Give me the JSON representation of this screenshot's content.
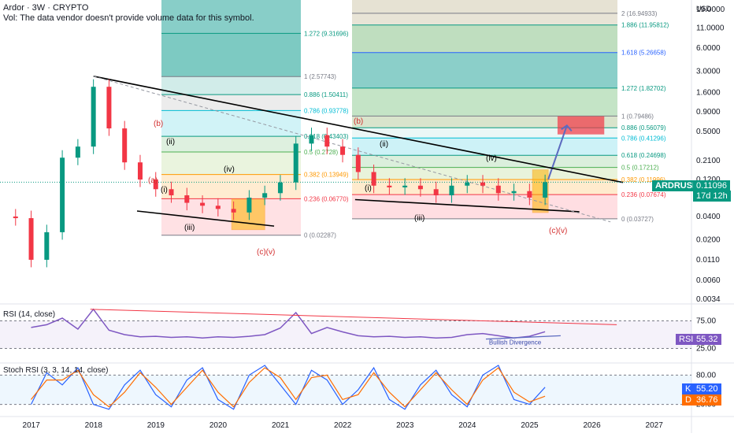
{
  "header": {
    "title": "Ardor · 3W · CRYPTO",
    "vol_note": "Vol: The data vendor doesn't provide volume data for this symbol."
  },
  "price_axis": {
    "currency": "USD",
    "ticks": [
      "19.0000",
      "11.0000",
      "6.0000",
      "3.0000",
      "1.6000",
      "0.9000",
      "0.5000",
      "0.2100",
      "0.1200",
      "0.0700",
      "0.0400",
      "0.0200",
      "0.0110",
      "0.0060",
      "0.0034"
    ]
  },
  "x_axis": {
    "labels": [
      "2017",
      "2018",
      "2019",
      "2020",
      "2021",
      "2022",
      "2023",
      "2024",
      "2025",
      "2026",
      "2027"
    ]
  },
  "symbol_badge": {
    "symbol": "ARDRUSD",
    "price": "0.11096",
    "countdown": "17d 12h",
    "color": "#089981"
  },
  "fib_left": [
    {
      "label": "1.272 (9.31696)",
      "color": "#089981"
    },
    {
      "label": "1 (2.57743)",
      "color": "#787b86"
    },
    {
      "label": "0.886 (1.50411)",
      "color": "#089981"
    },
    {
      "label": "0.786 (0.93778)",
      "color": "#00bcd4"
    },
    {
      "label": "0.618 (0.43403)",
      "color": "#089981"
    },
    {
      "label": "0.5 (0.2728)",
      "color": "#4caf50"
    },
    {
      "label": "0.382 (0.13949)",
      "color": "#ff9800"
    },
    {
      "label": "0.236 (0.06770)",
      "color": "#f23645"
    },
    {
      "label": "0 (0.02287)",
      "color": "#787b86"
    }
  ],
  "fib_right": [
    {
      "label": "2 (16.94933)",
      "color": "#787b86"
    },
    {
      "label": "1.886 (11.95812)",
      "color": "#089981"
    },
    {
      "label": "1.618 (5.26658)",
      "color": "#2962ff"
    },
    {
      "label": "1.272 (1.82702)",
      "color": "#089981"
    },
    {
      "label": "1 (0.79486)",
      "color": "#787b86"
    },
    {
      "label": "0.886 (0.56079)",
      "color": "#089981"
    },
    {
      "label": "0.786 (0.41296)",
      "color": "#00bcd4"
    },
    {
      "label": "0.618 (0.24698)",
      "color": "#089981"
    },
    {
      "label": "0.5 (0.17212)",
      "color": "#4caf50"
    },
    {
      "label": "0.382 (0.11996)",
      "color": "#ff9800"
    },
    {
      "label": "0.236 (0.07674)",
      "color": "#f23645"
    },
    {
      "label": "0 (0.03727)",
      "color": "#787b86"
    }
  ],
  "wave_labels": {
    "a": "(a)",
    "b": "(b)",
    "i": "(i)",
    "ii": "(ii)",
    "iii": "(iii)",
    "iv": "(iv)",
    "cv": "(c)(v)"
  },
  "rsi": {
    "title": "RSI (14, close)",
    "ticks": [
      "75.00",
      "25.00"
    ],
    "badge_name": "RSI",
    "badge_value": "55.32",
    "divergence_label": "Bullish Divergence"
  },
  "stoch": {
    "title": "Stoch RSI (3, 3, 14, 14, close)",
    "ticks": [
      "80.00",
      "20.00"
    ],
    "k_name": "K",
    "k_value": "55.20",
    "d_name": "D",
    "d_value": "36.76"
  },
  "chart_data": [
    {
      "type": "candlestick",
      "title": "Ardor · 3W · CRYPTO",
      "scale": "log",
      "ylim": [
        0.0034,
        19.0
      ],
      "x": [
        "2016-10",
        "2017-01",
        "2017-04",
        "2017-07",
        "2017-10",
        "2018-01",
        "2018-04",
        "2018-07",
        "2018-10",
        "2019-01",
        "2019-04",
        "2019-07",
        "2019-10",
        "2020-01",
        "2020-04",
        "2020-07",
        "2020-10",
        "2021-01",
        "2021-04",
        "2021-07",
        "2021-10",
        "2022-01",
        "2022-04",
        "2022-07",
        "2022-10",
        "2023-01",
        "2023-04",
        "2023-07",
        "2023-10",
        "2024-01",
        "2024-04",
        "2024-07",
        "2024-10",
        "2025-01",
        "2025-04"
      ],
      "close": [
        0.038,
        0.011,
        0.025,
        0.23,
        0.32,
        1.9,
        0.55,
        0.2,
        0.12,
        0.09,
        0.075,
        0.06,
        0.055,
        0.05,
        0.045,
        0.07,
        0.08,
        0.11,
        0.35,
        0.45,
        0.32,
        0.25,
        0.15,
        0.1,
        0.095,
        0.1,
        0.09,
        0.075,
        0.1,
        0.11,
        0.1,
        0.08,
        0.085,
        0.07,
        0.11096
      ]
    },
    {
      "type": "line",
      "title": "RSI (14, close)",
      "ylim": [
        0,
        100
      ],
      "x": [
        "2017-01",
        "2017-04",
        "2017-07",
        "2017-10",
        "2018-01",
        "2018-04",
        "2018-07",
        "2018-10",
        "2019-01",
        "2019-04",
        "2019-07",
        "2019-10",
        "2020-01",
        "2020-04",
        "2020-07",
        "2020-10",
        "2021-01",
        "2021-04",
        "2021-07",
        "2021-10",
        "2022-01",
        "2022-04",
        "2022-07",
        "2022-10",
        "2023-01",
        "2023-04",
        "2023-07",
        "2023-10",
        "2024-01",
        "2024-04",
        "2024-07",
        "2024-10",
        "2025-01",
        "2025-04"
      ],
      "values": [
        63,
        68,
        80,
        60,
        96,
        58,
        50,
        46,
        47,
        45,
        46,
        44,
        46,
        45,
        47,
        50,
        62,
        90,
        52,
        63,
        55,
        48,
        46,
        47,
        45,
        46,
        44,
        45,
        50,
        52,
        48,
        44,
        47,
        55.32
      ]
    },
    {
      "type": "line",
      "title": "Stoch RSI (3, 3, 14, 14, close)",
      "ylim": [
        0,
        100
      ],
      "series": [
        {
          "name": "K",
          "values": [
            20,
            85,
            60,
            95,
            20,
            10,
            60,
            90,
            40,
            15,
            70,
            95,
            30,
            10,
            80,
            100,
            60,
            20,
            90,
            70,
            20,
            50,
            95,
            30,
            10,
            60,
            90,
            40,
            15,
            80,
            100,
            30,
            20,
            55.2
          ]
        },
        {
          "name": "D",
          "values": [
            30,
            70,
            70,
            90,
            40,
            15,
            45,
            85,
            55,
            20,
            55,
            90,
            45,
            15,
            65,
            95,
            75,
            30,
            75,
            80,
            30,
            40,
            85,
            45,
            15,
            50,
            85,
            50,
            20,
            70,
            95,
            45,
            25,
            36.76
          ]
        }
      ]
    }
  ]
}
